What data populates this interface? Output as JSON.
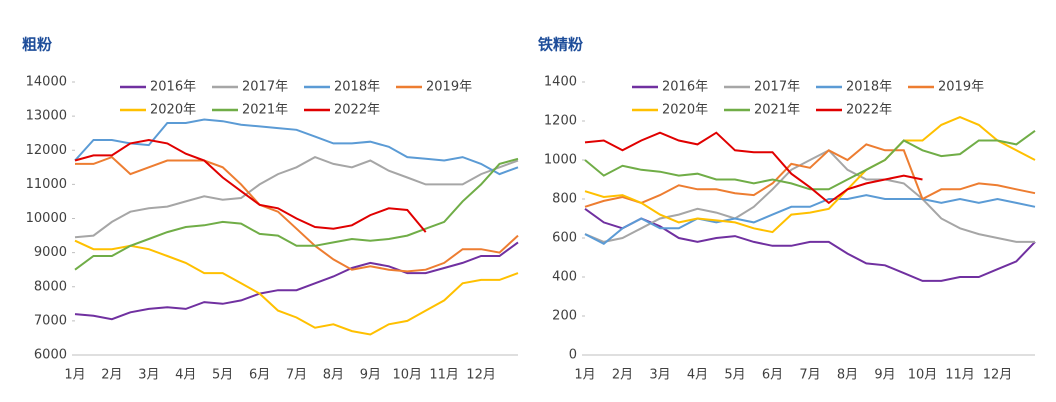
{
  "chart_data": [
    {
      "type": "line",
      "title": "粗粉",
      "categories": [
        "1月",
        null,
        "2月",
        null,
        "3月",
        null,
        "4月",
        null,
        "5月",
        null,
        "6月",
        null,
        "7月",
        null,
        "8月",
        null,
        "9月",
        null,
        "10月",
        null,
        "11月",
        null,
        "12月",
        null,
        null
      ],
      "ylim": [
        6000,
        14000
      ],
      "yticks": [
        6000,
        7000,
        8000,
        9000,
        10000,
        11000,
        12000,
        13000,
        14000
      ],
      "series": [
        {
          "name": "2016年",
          "color": "#7030a0",
          "values": [
            7200,
            7150,
            7050,
            7250,
            7350,
            7400,
            7350,
            7550,
            7500,
            7600,
            7800,
            7900,
            7900,
            8100,
            8300,
            8550,
            8700,
            8600,
            8400,
            8400,
            8550,
            8700,
            8900,
            8900,
            9300
          ]
        },
        {
          "name": "2017年",
          "color": "#a6a6a6",
          "values": [
            9450,
            9500,
            9900,
            10200,
            10300,
            10350,
            10500,
            10650,
            10550,
            10600,
            11000,
            11300,
            11500,
            11800,
            11600,
            11500,
            11700,
            11400,
            11200,
            11000,
            11000,
            11000,
            11300,
            11500,
            11700
          ]
        },
        {
          "name": "2018年",
          "color": "#5b9bd5",
          "values": [
            11700,
            12300,
            12300,
            12200,
            12150,
            12800,
            12800,
            12900,
            12850,
            12750,
            12700,
            12650,
            12600,
            12400,
            12200,
            12200,
            12250,
            12100,
            11800,
            11750,
            11700,
            11800,
            11600,
            11300,
            11500
          ]
        },
        {
          "name": "2019年",
          "color": "#ed7d31",
          "values": [
            11600,
            11600,
            11800,
            11300,
            11500,
            11700,
            11700,
            11700,
            11500,
            11000,
            10400,
            10200,
            9700,
            9200,
            8800,
            8500,
            8600,
            8500,
            8450,
            8500,
            8700,
            9100,
            9100,
            9000,
            9500
          ]
        },
        {
          "name": "2020年",
          "color": "#ffc000",
          "values": [
            9350,
            9100,
            9100,
            9200,
            9100,
            8900,
            8700,
            8400,
            8400,
            8100,
            7800,
            7300,
            7100,
            6800,
            6900,
            6700,
            6600,
            6900,
            7000,
            7300,
            7600,
            8100,
            8200,
            8200,
            8400
          ]
        },
        {
          "name": "2021年",
          "color": "#70ad47",
          "values": [
            8500,
            8900,
            8900,
            9200,
            9400,
            9600,
            9750,
            9800,
            9900,
            9850,
            9550,
            9500,
            9200,
            9200,
            9300,
            9400,
            9350,
            9400,
            9500,
            9700,
            9900,
            10500,
            11000,
            11600,
            11750
          ]
        },
        {
          "name": "2022年",
          "color": "#e00000",
          "values": [
            11700,
            11850,
            11850,
            12200,
            12300,
            12200,
            11900,
            11700,
            11200,
            10800,
            10400,
            10300,
            10000,
            9750,
            9700,
            9800,
            10100,
            10300,
            10250,
            9600,
            null,
            null,
            null,
            null,
            null
          ]
        }
      ]
    },
    {
      "type": "line",
      "title": "铁精粉",
      "categories": [
        "1月",
        null,
        "2月",
        null,
        "3月",
        null,
        "4月",
        null,
        "5月",
        null,
        "6月",
        null,
        "7月",
        null,
        "8月",
        null,
        "9月",
        null,
        "10月",
        null,
        "11月",
        null,
        "12月",
        null,
        null
      ],
      "ylim": [
        0,
        1400
      ],
      "yticks": [
        0,
        200,
        400,
        600,
        800,
        1000,
        1200,
        1400
      ],
      "series": [
        {
          "name": "2016年",
          "color": "#7030a0",
          "values": [
            750,
            680,
            650,
            700,
            660,
            600,
            580,
            600,
            610,
            580,
            560,
            560,
            580,
            580,
            520,
            470,
            460,
            420,
            380,
            380,
            400,
            400,
            440,
            480,
            580
          ]
        },
        {
          "name": "2017年",
          "color": "#a6a6a6",
          "values": [
            620,
            580,
            600,
            650,
            700,
            720,
            750,
            730,
            700,
            760,
            850,
            950,
            1000,
            1050,
            950,
            900,
            900,
            880,
            800,
            700,
            650,
            620,
            600,
            580,
            580
          ]
        },
        {
          "name": "2018年",
          "color": "#5b9bd5",
          "values": [
            620,
            570,
            650,
            700,
            650,
            650,
            700,
            680,
            700,
            680,
            720,
            760,
            760,
            800,
            800,
            820,
            800,
            800,
            800,
            780,
            800,
            780,
            800,
            780,
            760
          ]
        },
        {
          "name": "2019年",
          "color": "#ed7d31",
          "values": [
            760,
            790,
            810,
            780,
            820,
            870,
            850,
            850,
            830,
            820,
            880,
            980,
            960,
            1050,
            1000,
            1080,
            1050,
            1050,
            800,
            850,
            850,
            880,
            870,
            850,
            830
          ]
        },
        {
          "name": "2020年",
          "color": "#ffc000",
          "values": [
            840,
            810,
            820,
            780,
            720,
            680,
            700,
            690,
            680,
            650,
            630,
            720,
            730,
            750,
            850,
            950,
            1000,
            1100,
            1100,
            1180,
            1220,
            1180,
            1100,
            1050,
            1000
          ]
        },
        {
          "name": "2021年",
          "color": "#70ad47",
          "values": [
            1000,
            920,
            970,
            950,
            940,
            920,
            930,
            900,
            900,
            880,
            900,
            880,
            850,
            850,
            900,
            950,
            1000,
            1100,
            1050,
            1020,
            1030,
            1100,
            1100,
            1080,
            1150
          ]
        },
        {
          "name": "2022年",
          "color": "#e00000",
          "values": [
            1090,
            1100,
            1050,
            1100,
            1140,
            1100,
            1080,
            1140,
            1050,
            1040,
            1040,
            930,
            860,
            780,
            850,
            880,
            900,
            920,
            900,
            null,
            null,
            null,
            null,
            null,
            null
          ]
        }
      ]
    }
  ]
}
